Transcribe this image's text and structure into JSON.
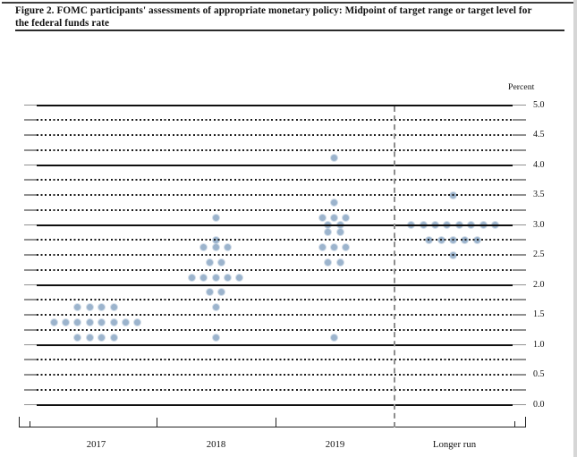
{
  "header": {
    "title_line1": "Figure 2. FOMC participants' assessments of appropriate monetary policy: Midpoint of target range or target level for",
    "title_line2": "the federal funds rate"
  },
  "chart_data": {
    "type": "scatter",
    "subtype": "fomc-dot-plot",
    "title": "FOMC participants' assessments of appropriate monetary policy: Midpoint of target range or target level for the federal funds rate",
    "ylabel": "Percent",
    "ylim": [
      0.0,
      5.0
    ],
    "ytick_labels": [
      "5.0",
      "4.5",
      "4.0",
      "3.5",
      "3.0",
      "2.5",
      "2.0",
      "1.5",
      "1.0",
      "0.5",
      "0.0"
    ],
    "ytick_label_step": 0.5,
    "gridline_step": 0.25,
    "grid_style": "solid lines at whole percents, dotted lines at quarter percents",
    "legend_position": "none",
    "categories": [
      "2017",
      "2018",
      "2019",
      "Longer run"
    ],
    "separator_before_category": "Longer run",
    "dot_color": "#9cb4cd",
    "series": [
      {
        "name": "2017",
        "points": [
          {
            "value": 1.625,
            "count": 4
          },
          {
            "value": 1.375,
            "count": 8
          },
          {
            "value": 1.125,
            "count": 4
          }
        ]
      },
      {
        "name": "2018",
        "points": [
          {
            "value": 3.125,
            "count": 1
          },
          {
            "value": 2.75,
            "count": 1
          },
          {
            "value": 2.625,
            "count": 3
          },
          {
            "value": 2.375,
            "count": 2
          },
          {
            "value": 2.125,
            "count": 5
          },
          {
            "value": 1.875,
            "count": 2
          },
          {
            "value": 1.625,
            "count": 1
          },
          {
            "value": 1.125,
            "count": 1
          }
        ]
      },
      {
        "name": "2019",
        "points": [
          {
            "value": 4.125,
            "count": 1
          },
          {
            "value": 3.375,
            "count": 1
          },
          {
            "value": 3.125,
            "count": 3
          },
          {
            "value": 3.0,
            "count": 2
          },
          {
            "value": 2.875,
            "count": 2
          },
          {
            "value": 2.625,
            "count": 3
          },
          {
            "value": 2.375,
            "count": 2
          },
          {
            "value": 1.125,
            "count": 1
          }
        ]
      },
      {
        "name": "Longer run",
        "points": [
          {
            "value": 3.5,
            "count": 1
          },
          {
            "value": 3.0,
            "count": 8
          },
          {
            "value": 2.75,
            "count": 5
          },
          {
            "value": 2.5,
            "count": 1
          }
        ]
      }
    ]
  }
}
